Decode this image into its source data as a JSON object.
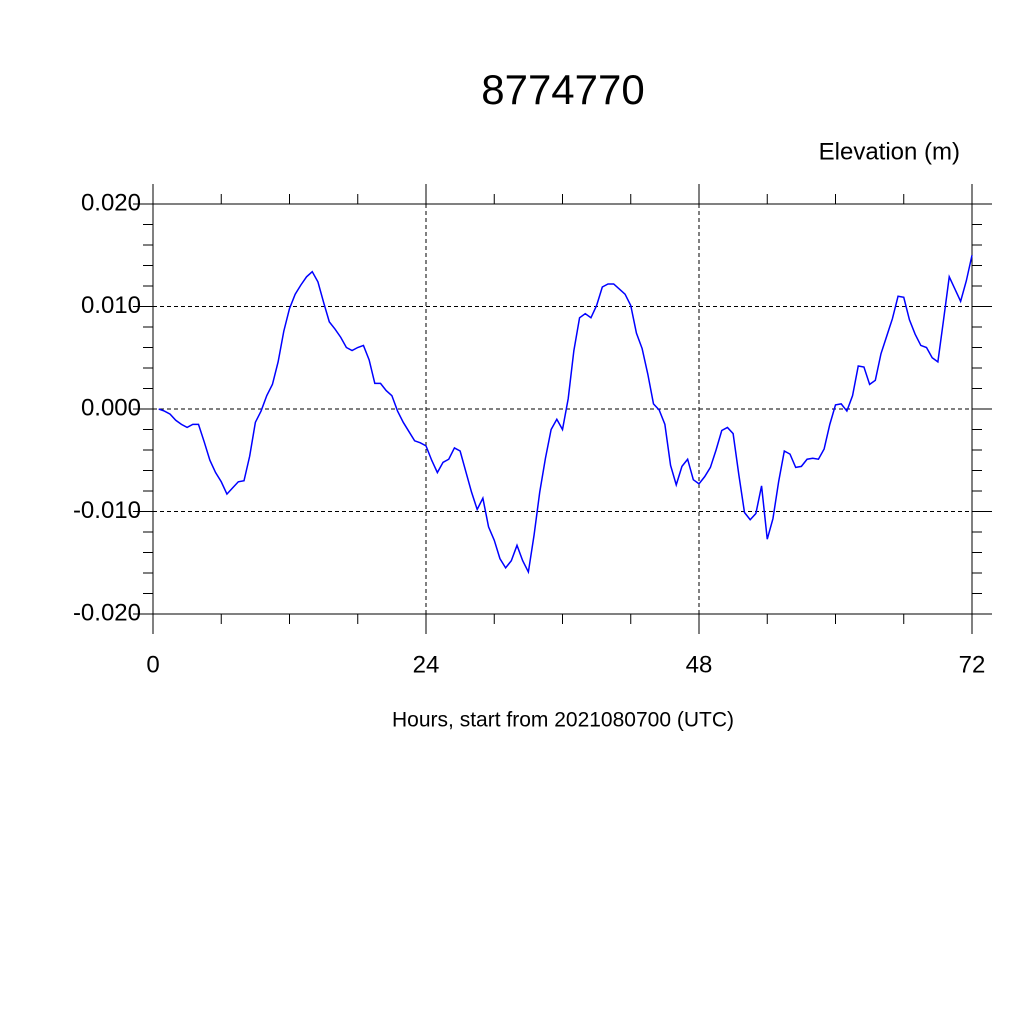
{
  "chart_data": {
    "type": "line",
    "title": "8774770",
    "ylabel": "Elevation (m)",
    "xlabel": "Hours, start from 2021080700 (UTC)",
    "xlim": [
      0,
      72
    ],
    "xticks": [
      0,
      24,
      48,
      72
    ],
    "xminorticks": [
      6,
      12,
      18,
      30,
      36,
      42,
      54,
      60,
      66
    ],
    "ylim": [
      -0.02,
      0.02
    ],
    "yticks": [
      {
        "value": -0.02,
        "label": "-0.020"
      },
      {
        "value": -0.01,
        "label": "-0.010"
      },
      {
        "value": 0,
        "label": "0.000"
      },
      {
        "value": 0.01,
        "label": "0.010"
      },
      {
        "value": 0.02,
        "label": "0.020"
      }
    ],
    "yminorticks": [
      -0.018,
      -0.016,
      -0.014,
      -0.012,
      -0.008,
      -0.006,
      -0.004,
      -0.002,
      0.002,
      0.004,
      0.006,
      0.008,
      0.012,
      0.014,
      0.016,
      0.018
    ],
    "grid": true,
    "series": [
      {
        "color": "#0000ff",
        "x": [
          0.5,
          1,
          1.5,
          2,
          2.5,
          3,
          3.5,
          4,
          4.5,
          5,
          5.5,
          6,
          6.5,
          7,
          7.5,
          8,
          8.5,
          9,
          9.5,
          10,
          10.5,
          11,
          11.5,
          12,
          12.5,
          13,
          13.5,
          14,
          14.5,
          15,
          15.5,
          16,
          16.5,
          17,
          17.5,
          18,
          18.5,
          19,
          19.5,
          20,
          20.5,
          21,
          21.5,
          22,
          22.5,
          23,
          23.5,
          24,
          24.5,
          25,
          25.5,
          26,
          26.5,
          27,
          27.5,
          28,
          28.5,
          29,
          29.5,
          30,
          30.5,
          31,
          31.5,
          32,
          32.5,
          33,
          33.5,
          34,
          34.5,
          35,
          35.5,
          36,
          36.5,
          37,
          37.5,
          38,
          38.5,
          39,
          39.5,
          40,
          40.5,
          41,
          41.5,
          42,
          42.5,
          43,
          43.5,
          44,
          44.5,
          45,
          45.5,
          46,
          46.5,
          47,
          47.5,
          48,
          48.5,
          49,
          49.5,
          50,
          50.5,
          51,
          51.5,
          52,
          52.5,
          53,
          53.5,
          54,
          54.5,
          55,
          55.5,
          56,
          56.5,
          57,
          57.5,
          58,
          58.5,
          59,
          59.5,
          60,
          60.5,
          61,
          61.5,
          62,
          62.5,
          63,
          63.5,
          64,
          64.5,
          65,
          65.5,
          66,
          66.5,
          67,
          67.5,
          68,
          68.5,
          69,
          69.5,
          70,
          70.5,
          71,
          71.5,
          72
        ],
        "values": [
          0.0,
          -0.0002,
          -0.0005,
          -0.0011,
          -0.0015,
          -0.0018,
          -0.0015,
          -0.0015,
          -0.0032,
          -0.005,
          -0.0062,
          -0.0071,
          -0.0083,
          -0.0077,
          -0.0071,
          -0.007,
          -0.0046,
          -0.0013,
          -0.0002,
          0.0013,
          0.0024,
          0.0046,
          0.0076,
          0.0098,
          0.0112,
          0.0121,
          0.0129,
          0.0134,
          0.0124,
          0.0104,
          0.0085,
          0.0078,
          0.007,
          0.006,
          0.0057,
          0.006,
          0.0062,
          0.0048,
          0.0025,
          0.0025,
          0.0018,
          0.0013,
          -0.0002,
          -0.0013,
          -0.0022,
          -0.0031,
          -0.0033,
          -0.0036,
          -0.005,
          -0.0062,
          -0.0052,
          -0.0049,
          -0.0038,
          -0.0041,
          -0.0061,
          -0.0081,
          -0.0098,
          -0.0087,
          -0.0115,
          -0.0128,
          -0.0146,
          -0.0155,
          -0.0148,
          -0.0133,
          -0.0148,
          -0.0159,
          -0.0123,
          -0.0081,
          -0.0048,
          -0.002,
          -0.001,
          -0.002,
          0.001,
          0.0057,
          0.0089,
          0.0093,
          0.0089,
          0.0101,
          0.0119,
          0.0122,
          0.0122,
          0.0117,
          0.0112,
          0.0101,
          0.0074,
          0.0059,
          0.0034,
          0.0005,
          -0.0001,
          -0.0015,
          -0.0055,
          -0.0074,
          -0.0056,
          -0.0049,
          -0.0069,
          -0.0073,
          -0.0066,
          -0.0057,
          -0.004,
          -0.0021,
          -0.0018,
          -0.0024,
          -0.0064,
          -0.0101,
          -0.0108,
          -0.0102,
          -0.0075,
          -0.0127,
          -0.0107,
          -0.0071,
          -0.0041,
          -0.0044,
          -0.0057,
          -0.0056,
          -0.0049,
          -0.0048,
          -0.0049,
          -0.0039,
          -0.0015,
          0.0004,
          0.0005,
          -0.0002,
          0.0013,
          0.0042,
          0.0041,
          0.0024,
          0.0028,
          0.0054,
          0.0071,
          0.0088,
          0.011,
          0.0109,
          0.0087,
          0.0073,
          0.0062,
          0.006,
          0.005,
          0.0046,
          0.0087,
          0.0129,
          0.0117,
          0.0105,
          0.0125,
          0.015
        ]
      }
    ]
  }
}
